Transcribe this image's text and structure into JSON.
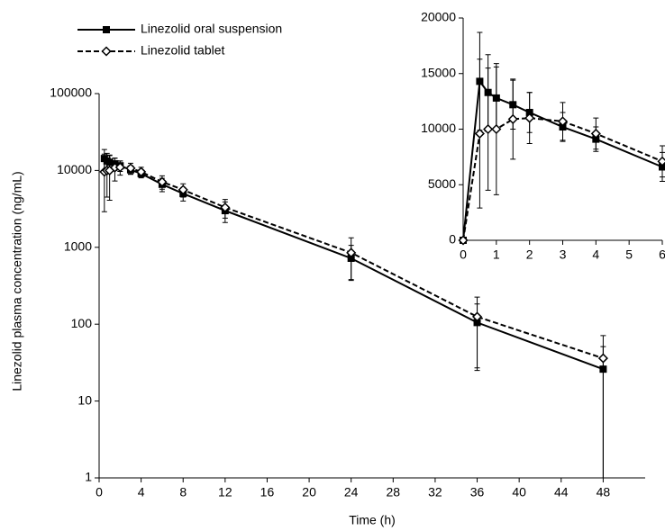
{
  "chart_data": [
    {
      "type": "line",
      "log_y": true,
      "x_label": "Time (h)",
      "y_label": "Linezolid plasma concentration (ng/mL)",
      "x": [
        0.5,
        0.75,
        1,
        1.5,
        2,
        3,
        4,
        6,
        8,
        12,
        24,
        36,
        48
      ],
      "xlim": [
        0,
        52
      ],
      "xticks": [
        0,
        4,
        8,
        12,
        16,
        20,
        24,
        28,
        32,
        36,
        40,
        44,
        48
      ],
      "ylim": [
        1,
        100000
      ],
      "yticks": [
        1,
        10,
        100,
        1000,
        10000,
        100000
      ],
      "legend": "top-left",
      "series": [
        {
          "name": "Linezolid oral suspension",
          "color": "#000000",
          "dashed": false,
          "marker": "square",
          "values": [
            14300,
            13300,
            12800,
            12200,
            11500,
            10200,
            9100,
            6600,
            5000,
            3000,
            720,
            105,
            26
          ],
          "errors": [
            4400,
            3400,
            2800,
            2200,
            1800,
            1300,
            1100,
            1300,
            1000,
            900,
            340,
            78,
            25
          ]
        },
        {
          "name": "Linezolid tablet",
          "color": "#000000",
          "dashed": true,
          "marker": "diamond",
          "values": [
            9600,
            10000,
            10000,
            10900,
            11000,
            10700,
            9600,
            7100,
            5600,
            3300,
            850,
            125,
            36
          ],
          "errors": [
            6700,
            5500,
            5900,
            3600,
            2300,
            1700,
            1400,
            1400,
            1100,
            900,
            480,
            100,
            35
          ]
        }
      ]
    },
    {
      "type": "line",
      "log_y": false,
      "x": [
        0,
        0.5,
        0.75,
        1,
        1.5,
        2,
        3,
        4,
        6
      ],
      "xlim": [
        0,
        6
      ],
      "xticks": [
        0,
        1,
        2,
        3,
        4,
        5,
        6
      ],
      "ylim": [
        0,
        20000
      ],
      "yticks": [
        0,
        5000,
        10000,
        15000,
        20000
      ],
      "series": [
        {
          "color": "#000000",
          "dashed": false,
          "marker": "square",
          "values": [
            0,
            14300,
            13300,
            12800,
            12200,
            11500,
            10200,
            9100,
            6600
          ],
          "errors": [
            0,
            4400,
            3400,
            2800,
            2200,
            1800,
            1300,
            1100,
            1300
          ]
        },
        {
          "color": "#000000",
          "dashed": true,
          "marker": "diamond",
          "values": [
            0,
            9600,
            10000,
            10000,
            10900,
            11000,
            10700,
            9600,
            7100
          ],
          "errors": [
            0,
            6700,
            5500,
            5900,
            3600,
            2300,
            1700,
            1400,
            1400
          ]
        }
      ]
    }
  ]
}
